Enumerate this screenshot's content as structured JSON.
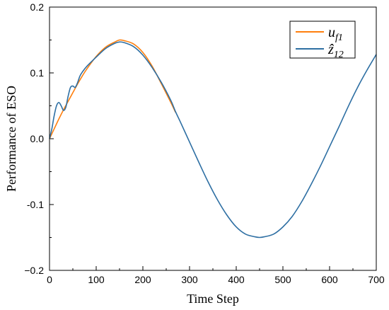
{
  "chart_data": {
    "type": "line",
    "xlabel": "Time Step",
    "ylabel": "Performance of ESO",
    "xlim": [
      0,
      700
    ],
    "ylim": [
      -0.2,
      0.2
    ],
    "xticks": [
      0,
      100,
      200,
      300,
      400,
      500,
      600,
      700
    ],
    "xtick_labels": [
      "0",
      "100",
      "200",
      "300",
      "400",
      "500",
      "600",
      "700"
    ],
    "yticks": [
      -0.2,
      -0.1,
      0.0,
      0.1,
      0.2
    ],
    "ytick_labels": [
      "−0.2",
      "-0.1",
      "0.0",
      "0.1",
      "0.2"
    ],
    "grid": false,
    "legend_position": "top-right",
    "series": [
      {
        "name": "u_f1",
        "legend_main": "u",
        "legend_sub": "f1",
        "color": "#ff7f0e",
        "x": [
          0,
          10,
          20,
          30,
          40,
          50,
          60,
          70,
          80,
          100,
          120,
          140,
          150,
          160,
          180,
          200,
          220,
          240,
          260,
          270
        ],
        "y": [
          0.0,
          0.015,
          0.03,
          0.044,
          0.057,
          0.07,
          0.083,
          0.095,
          0.106,
          0.125,
          0.139,
          0.147,
          0.15,
          0.149,
          0.144,
          0.131,
          0.11,
          0.083,
          0.055,
          0.04
        ]
      },
      {
        "name": "z_12",
        "legend_main": "ẑ",
        "legend_sub": "12",
        "color": "#2e6fa3",
        "x": [
          0,
          5,
          10,
          15,
          20,
          25,
          30,
          35,
          40,
          45,
          50,
          55,
          60,
          65,
          70,
          80,
          100,
          120,
          140,
          150,
          160,
          180,
          200,
          220,
          240,
          260,
          270,
          280,
          300,
          320,
          340,
          360,
          380,
          400,
          420,
          440,
          450,
          460,
          480,
          500,
          520,
          540,
          560,
          580,
          600,
          620,
          640,
          660,
          680,
          700
        ],
        "y": [
          0.0,
          0.015,
          0.035,
          0.05,
          0.055,
          0.05,
          0.043,
          0.048,
          0.065,
          0.078,
          0.08,
          0.078,
          0.085,
          0.095,
          0.101,
          0.11,
          0.124,
          0.137,
          0.145,
          0.147,
          0.146,
          0.14,
          0.127,
          0.108,
          0.085,
          0.058,
          0.041,
          0.026,
          -0.005,
          -0.036,
          -0.066,
          -0.093,
          -0.116,
          -0.134,
          -0.145,
          -0.149,
          -0.15,
          -0.149,
          -0.145,
          -0.134,
          -0.118,
          -0.096,
          -0.07,
          -0.042,
          -0.012,
          0.018,
          0.049,
          0.078,
          0.104,
          0.128
        ]
      }
    ]
  }
}
